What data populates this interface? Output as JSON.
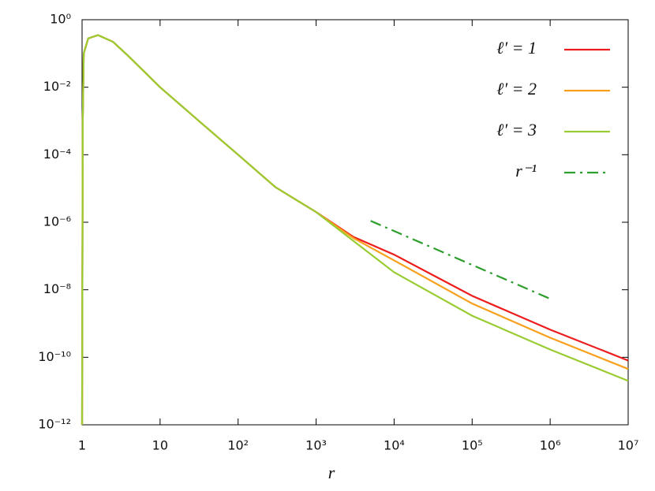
{
  "chart_data": {
    "type": "line",
    "xlabel": "r",
    "log_x": true,
    "log_y": true,
    "grid": false,
    "legend": "upper right",
    "x": [
      1,
      1.02,
      1.05,
      1.2,
      1.6,
      2.5,
      4,
      10,
      30,
      100,
      300,
      1000,
      3000,
      10000,
      100000,
      1000000,
      10000000
    ],
    "series": [
      {
        "name": "ℓ′ = 1",
        "color": "#ee1c1c",
        "style": "solid",
        "values": [
          1e-12,
          0.001,
          0.1,
          0.28,
          0.35,
          0.22,
          0.08,
          0.01,
          0.0011,
          0.0001,
          1.1e-05,
          2e-06,
          3.7e-07,
          1.1e-07,
          6.6e-09,
          6.6e-10,
          8e-11
        ]
      },
      {
        "name": "ℓ′ = 2",
        "color": "#f8a01c",
        "style": "solid",
        "values": [
          1e-12,
          0.001,
          0.1,
          0.28,
          0.35,
          0.22,
          0.08,
          0.01,
          0.0011,
          0.0001,
          1.1e-05,
          2e-06,
          3.4e-07,
          7.4e-08,
          3.9e-09,
          3.8e-10,
          4.5e-11
        ]
      },
      {
        "name": "ℓ′ = 3",
        "color": "#99cc33",
        "style": "solid",
        "values": [
          1e-12,
          0.001,
          0.1,
          0.28,
          0.35,
          0.22,
          0.08,
          0.01,
          0.0011,
          0.0001,
          1.1e-05,
          2e-06,
          2.8e-07,
          3.3e-08,
          1.7e-09,
          1.7e-10,
          2e-11
        ]
      },
      {
        "name": "r⁻¹",
        "color": "#2e9e2e",
        "style": "dashdot",
        "x": [
          5000,
          1000000
        ],
        "values": [
          1.1e-06,
          5.4e-09
        ]
      }
    ],
    "xlim": [
      1,
      10000000
    ],
    "ylim": [
      1e-12,
      1
    ],
    "xticks": [
      1,
      10,
      {
        "value": 100,
        "label": "10²"
      },
      {
        "value": 1000,
        "label": "10³"
      },
      {
        "value": 10000,
        "label": "10⁴"
      },
      {
        "value": 100000,
        "label": "10⁵"
      },
      {
        "value": 1000000,
        "label": "10⁶"
      },
      {
        "value": 10000000,
        "label": "10⁷"
      }
    ],
    "yticks": [
      {
        "value": 1e-12,
        "label": "10⁻¹²"
      },
      {
        "value": 1e-10,
        "label": "10⁻¹⁰"
      },
      {
        "value": 1e-08,
        "label": "10⁻⁸"
      },
      {
        "value": 1e-06,
        "label": "10⁻⁶"
      },
      {
        "value": 0.0001,
        "label": "10⁻⁴"
      },
      {
        "value": 0.01,
        "label": "10⁻²"
      },
      {
        "value": 1,
        "label": "10⁰"
      }
    ]
  }
}
